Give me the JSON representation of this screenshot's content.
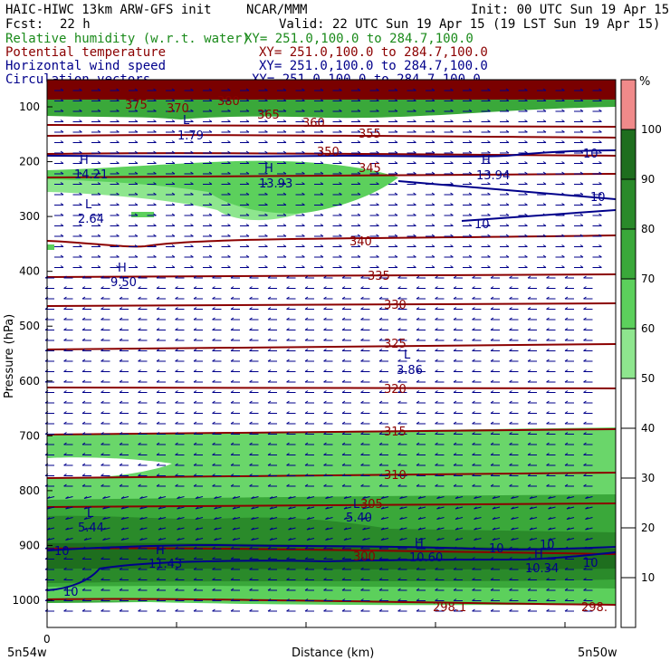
{
  "header": {
    "model": "HAIC-HIWC 13km ARW-GFS init",
    "org": "NCAR/MMM",
    "init": "Init: 00 UTC Sun 19 Apr 15",
    "fcst_label": "Fcst:",
    "fcst_value": "22 h",
    "valid": "Valid: 22 UTC Sun 19 Apr 15 (19 LST Sun 19 Apr 15)",
    "fields": [
      {
        "name": "Relative humidity (w.r.t. water)",
        "coords": "XY= 251.0,100.0 to 284.7,100.0",
        "color": "#1a8a1a"
      },
      {
        "name": "Potential temperature",
        "coords": "XY= 251.0,100.0 to 284.7,100.0",
        "color": "#8b0000"
      },
      {
        "name": "Horizontal wind speed",
        "coords": "XY= 251.0,100.0 to 284.7,100.0",
        "color": "#00008b"
      },
      {
        "name": "Circulation vectors",
        "coords": "XY= 251.0,100.0 to 284.7,100.0",
        "color": "#00008b"
      }
    ]
  },
  "colorbar": {
    "unit": "%",
    "ticks": [
      "100",
      "90",
      "80",
      "70",
      "60",
      "50",
      "40",
      "30",
      "20",
      "10"
    ],
    "colors": [
      "#f08a8a",
      "#1e6e1e",
      "#2a8a2a",
      "#3aa83a",
      "#5cd05c",
      "#8ee68e",
      "#ffffff",
      "#ffffff",
      "#ffffff",
      "#ffffff"
    ]
  },
  "chart_data": {
    "type": "cross-section",
    "xlabel": "Distance (km)",
    "ylabel": "Pressure (hPa)",
    "x_tick_zero": "0",
    "x_start_label": "5n54w",
    "x_end_label": "5n50w",
    "y_ticks": [
      100,
      200,
      300,
      400,
      500,
      600,
      700,
      800,
      900,
      1000
    ],
    "theta_isolines": [
      {
        "value": "375",
        "p": 95
      },
      {
        "value": "370",
        "p": 100
      },
      {
        "value": "380",
        "p": 90
      },
      {
        "value": "365",
        "p": 112
      },
      {
        "value": "360",
        "p": 128
      },
      {
        "value": "355",
        "p": 155
      },
      {
        "value": "350",
        "p": 175
      },
      {
        "value": "345",
        "p": 200
      },
      {
        "value": "340",
        "p": 342
      },
      {
        "value": "335",
        "p": 405
      },
      {
        "value": "330",
        "p": 460
      },
      {
        "value": "325",
        "p": 543
      },
      {
        "value": "320",
        "p": 610
      },
      {
        "value": "315",
        "p": 690
      },
      {
        "value": "310",
        "p": 762
      },
      {
        "value": "305",
        "p": 823
      },
      {
        "value": "300",
        "p": 924
      },
      {
        "value": "298.1",
        "p": 1010
      },
      {
        "value": "298.",
        "p": 1010
      }
    ],
    "extrema": [
      {
        "type": "L",
        "value": "1.79"
      },
      {
        "type": "H",
        "value": "14.21"
      },
      {
        "type": "H",
        "value": "13.93"
      },
      {
        "type": "H",
        "value": "13.94"
      },
      {
        "type": "L",
        "value": "2.64"
      },
      {
        "type": "H",
        "value": "9.50"
      },
      {
        "type": "L",
        "value": "3.86"
      },
      {
        "type": "L",
        "value": "5.44"
      },
      {
        "type": "L",
        "value": "5.40"
      },
      {
        "type": "H",
        "value": "11.43"
      },
      {
        "type": "H",
        "value": "10.60"
      },
      {
        "type": "H",
        "value": "10.34"
      }
    ],
    "wind_speed_labels": [
      "10",
      "10",
      "10",
      "10",
      "10",
      "10",
      "10",
      "10"
    ],
    "rh_bands": [
      {
        "p_top": 88,
        "p_bot": 110,
        "rh": 100
      },
      {
        "p_top": 110,
        "p_bot": 128,
        "rh": 60
      },
      {
        "p_top": 195,
        "p_bot": 285,
        "rh": 55
      },
      {
        "p_top": 680,
        "p_bot": 840,
        "rh": 55
      },
      {
        "p_top": 840,
        "p_bot": 990,
        "rh": 85
      }
    ]
  }
}
